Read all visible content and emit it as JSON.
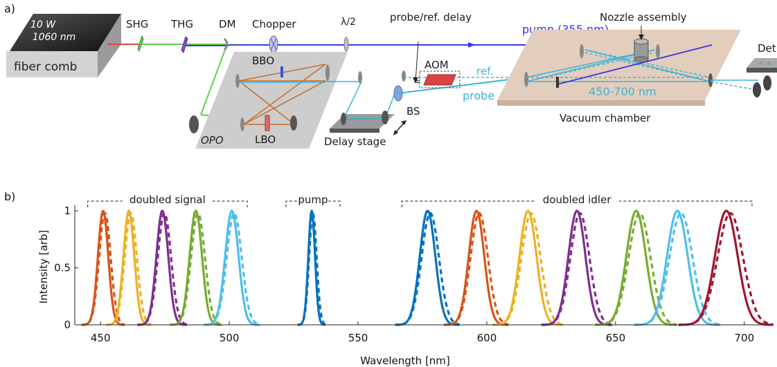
{
  "panel_a": {
    "label": "a)",
    "laser_power": "10 W",
    "laser_wavelength": "1060 nm",
    "laser_name": "fiber comb",
    "shg": "SHG",
    "thg": "THG",
    "dm": "DM",
    "chopper": "Chopper",
    "half_wave": "λ/2",
    "probe_ref_delay": "probe/ref. delay",
    "pump_beam": "pump (355 nm)",
    "nozzle": "Nozzle assembly",
    "detector": "Det",
    "bbo": "BBO",
    "aom": "AOM",
    "ref": "ref.",
    "probe": "probe",
    "bs": "BS",
    "probe_range": "450-700 nm",
    "vacuum": "Vacuum chamber",
    "opo": "OPO",
    "lbo": "LBO",
    "delay_stage": "Delay stage",
    "colors": {
      "pump": "#3a36e0",
      "probe": "#3bb3d6",
      "green": "#5ccf4a",
      "red": "#e0463c",
      "orange": "#cc6a2a",
      "chamber": "#e3cdbd"
    }
  },
  "chart_data": {
    "type": "line",
    "panel_label": "b)",
    "xlabel": "Wavelength [nm]",
    "ylabel": "Intensity [arb]",
    "xlim": [
      440,
      710
    ],
    "ylim": [
      0,
      1
    ],
    "xticks": [
      450,
      500,
      550,
      600,
      650,
      700
    ],
    "yticks": [
      {
        "v": 0,
        "t": "0"
      },
      {
        "v": 0.5,
        "t": "0.5"
      },
      {
        "v": 1,
        "t": "1"
      }
    ],
    "group_labels": [
      "doubled signal",
      "pump",
      "doubled idler"
    ],
    "groups": [
      {
        "label": "doubled signal",
        "from": 445,
        "to": 507
      },
      {
        "label": "pump",
        "from": 522,
        "to": 543
      },
      {
        "label": "doubled idler",
        "from": 567,
        "to": 703
      }
    ],
    "line_styles": [
      "solid",
      "dashed"
    ],
    "series": [
      {
        "center": 451,
        "width": 2.0,
        "color": "#d95319"
      },
      {
        "center": 461,
        "width": 2.1,
        "color": "#edb120"
      },
      {
        "center": 474,
        "width": 2.3,
        "color": "#7e2f8e"
      },
      {
        "center": 487,
        "width": 2.4,
        "color": "#77ac30"
      },
      {
        "center": 501,
        "width": 2.6,
        "color": "#4dbeee"
      },
      {
        "center": 532,
        "width": 1.3,
        "color": "#0072bd"
      },
      {
        "center": 577,
        "width": 3.0,
        "color": "#0072bd"
      },
      {
        "center": 596,
        "width": 3.0,
        "color": "#d95319"
      },
      {
        "center": 616,
        "width": 3.3,
        "color": "#edb120"
      },
      {
        "center": 635,
        "width": 3.3,
        "color": "#7e2f8e"
      },
      {
        "center": 658,
        "width": 3.8,
        "color": "#77ac30"
      },
      {
        "center": 674,
        "width": 4.0,
        "color": "#4dbeee"
      },
      {
        "center": 693,
        "width": 4.4,
        "color": "#a2142f"
      }
    ]
  }
}
